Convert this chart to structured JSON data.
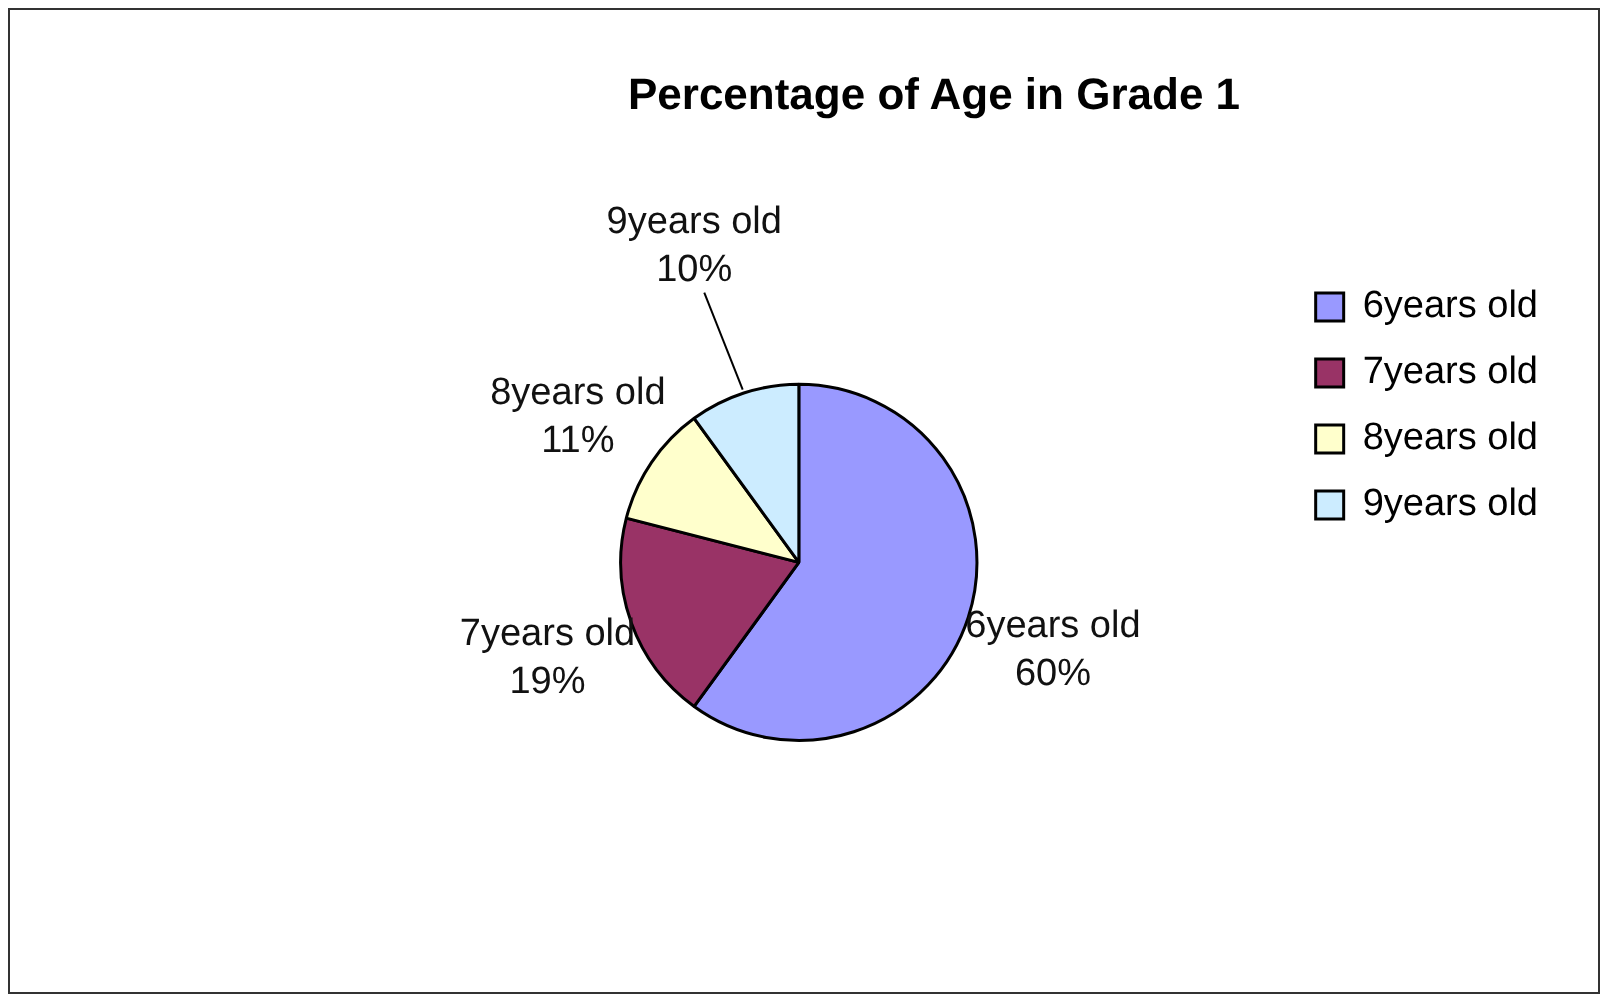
{
  "chart_data": {
    "type": "pie",
    "title": "Percentage of Age in Grade 1",
    "categories": [
      "6years old",
      "7years old",
      "8years old",
      "9years old"
    ],
    "values": [
      60,
      19,
      11,
      10
    ],
    "value_labels": [
      "60%",
      "19%",
      "11%",
      "10%"
    ],
    "colors": [
      "#9999ff",
      "#993366",
      "#ffffcc",
      "#ccecff"
    ],
    "legend": "right"
  }
}
